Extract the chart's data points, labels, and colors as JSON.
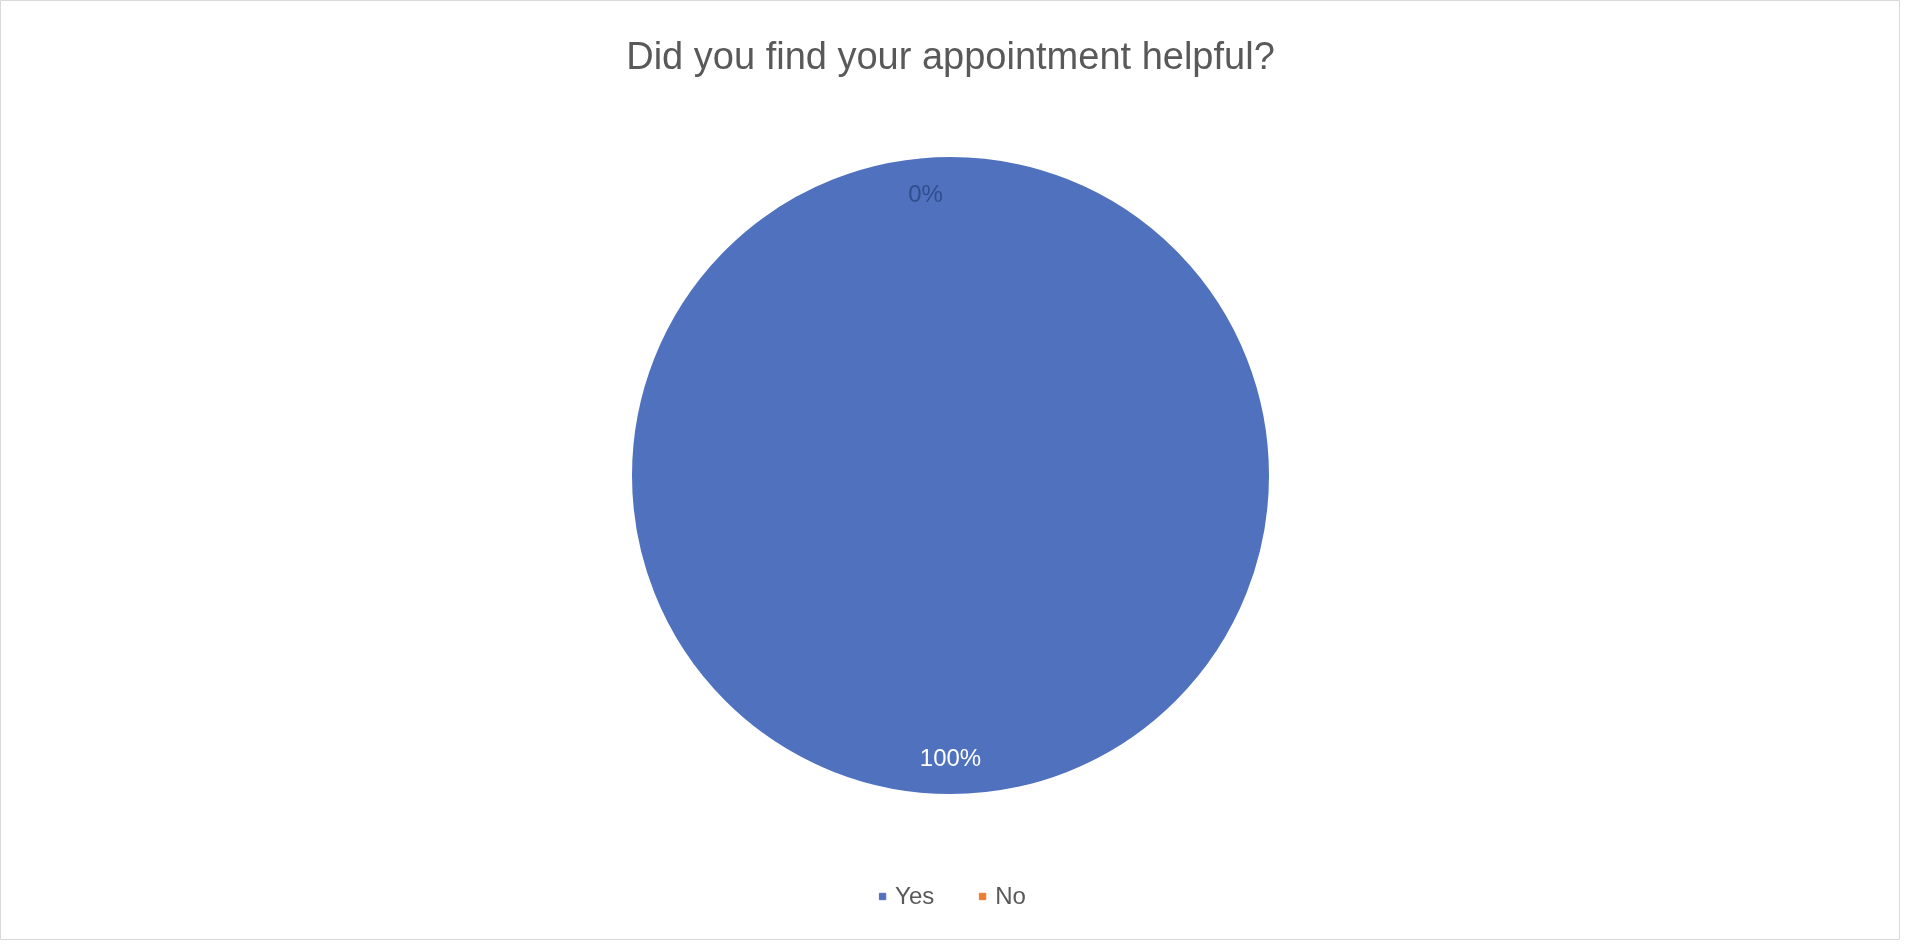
{
  "chart_data": {
    "type": "pie",
    "title": "Did you find your appointment helpful?",
    "categories": [
      "Yes",
      "No"
    ],
    "values": [
      100,
      0
    ],
    "colors": [
      "#4f71be",
      "#ed7d31"
    ],
    "value_labels": [
      "100%",
      "0%"
    ],
    "legend": "bottom"
  }
}
